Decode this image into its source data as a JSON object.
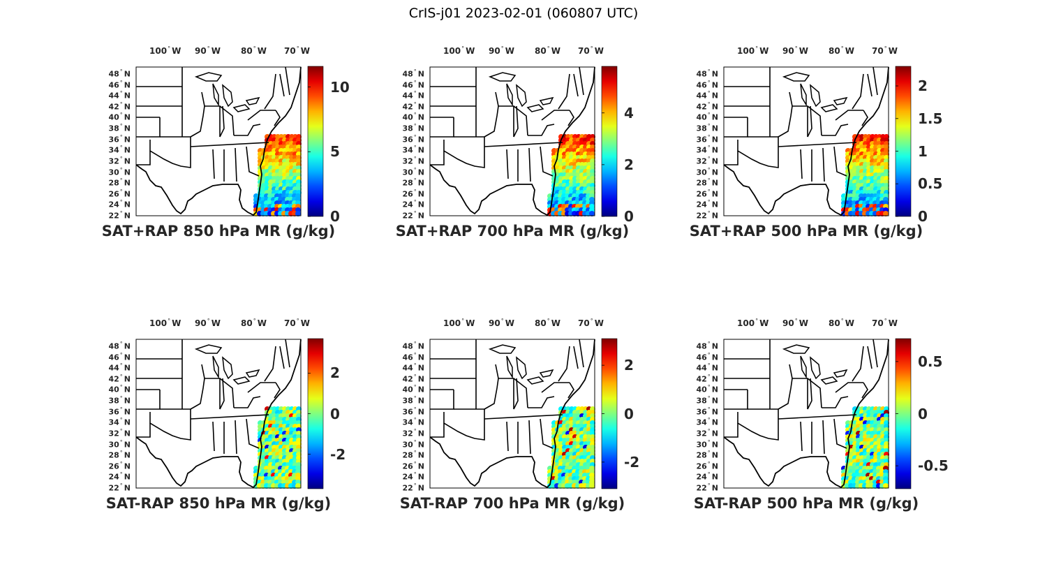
{
  "title": "CrIS-j01 2023-02-01 (060807 UTC)",
  "lon_ticks": [
    {
      "value": "100",
      "hemi": "W"
    },
    {
      "value": "90",
      "hemi": "W"
    },
    {
      "value": "80",
      "hemi": "W"
    },
    {
      "value": "70",
      "hemi": "W"
    }
  ],
  "lat_ticks": [
    {
      "value": "48",
      "hemi": "N"
    },
    {
      "value": "46",
      "hemi": "N"
    },
    {
      "value": "44",
      "hemi": "N"
    },
    {
      "value": "42",
      "hemi": "N"
    },
    {
      "value": "40",
      "hemi": "N"
    },
    {
      "value": "38",
      "hemi": "N"
    },
    {
      "value": "36",
      "hemi": "N"
    },
    {
      "value": "34",
      "hemi": "N"
    },
    {
      "value": "32",
      "hemi": "N"
    },
    {
      "value": "30",
      "hemi": "N"
    },
    {
      "value": "28",
      "hemi": "N"
    },
    {
      "value": "26",
      "hemi": "N"
    },
    {
      "value": "24",
      "hemi": "N"
    },
    {
      "value": "22",
      "hemi": "N"
    }
  ],
  "colormap": "jet",
  "panels": [
    {
      "title": "SAT+RAP 850 hPa MR (g/kg)",
      "clim": [
        0,
        11.6
      ],
      "ticks": [
        {
          "v": 0,
          "label": "0"
        },
        {
          "v": 5,
          "label": "5"
        },
        {
          "v": 10,
          "label": "10"
        }
      ]
    },
    {
      "title": "SAT+RAP 700 hPa MR (g/kg)",
      "clim": [
        0,
        5.8
      ],
      "ticks": [
        {
          "v": 0,
          "label": "0"
        },
        {
          "v": 2,
          "label": "2"
        },
        {
          "v": 4,
          "label": "4"
        }
      ]
    },
    {
      "title": "SAT+RAP 500 hPa MR (g/kg)",
      "clim": [
        0,
        2.3
      ],
      "ticks": [
        {
          "v": 0,
          "label": "0"
        },
        {
          "v": 0.5,
          "label": "0.5"
        },
        {
          "v": 1,
          "label": "1"
        },
        {
          "v": 1.5,
          "label": "1.5"
        },
        {
          "v": 2,
          "label": "2"
        }
      ]
    },
    {
      "title": "SAT-RAP 850 hPa MR (g/kg)",
      "clim": [
        -3.7,
        3.7
      ],
      "ticks": [
        {
          "v": -2,
          "label": "-2"
        },
        {
          "v": 0,
          "label": "0"
        },
        {
          "v": 2,
          "label": "2"
        }
      ]
    },
    {
      "title": "SAT-RAP 700 hPa MR (g/kg)",
      "clim": [
        -3.1,
        3.1
      ],
      "ticks": [
        {
          "v": -2,
          "label": "-2"
        },
        {
          "v": 0,
          "label": "0"
        },
        {
          "v": 2,
          "label": "2"
        }
      ]
    },
    {
      "title": "SAT-RAP 500 hPa MR (g/kg)",
      "clim": [
        -0.72,
        0.72
      ],
      "ticks": [
        {
          "v": -0.5,
          "label": "-0.5"
        },
        {
          "v": 0,
          "label": "0"
        },
        {
          "v": 0.5,
          "label": "0.5"
        }
      ]
    }
  ]
}
